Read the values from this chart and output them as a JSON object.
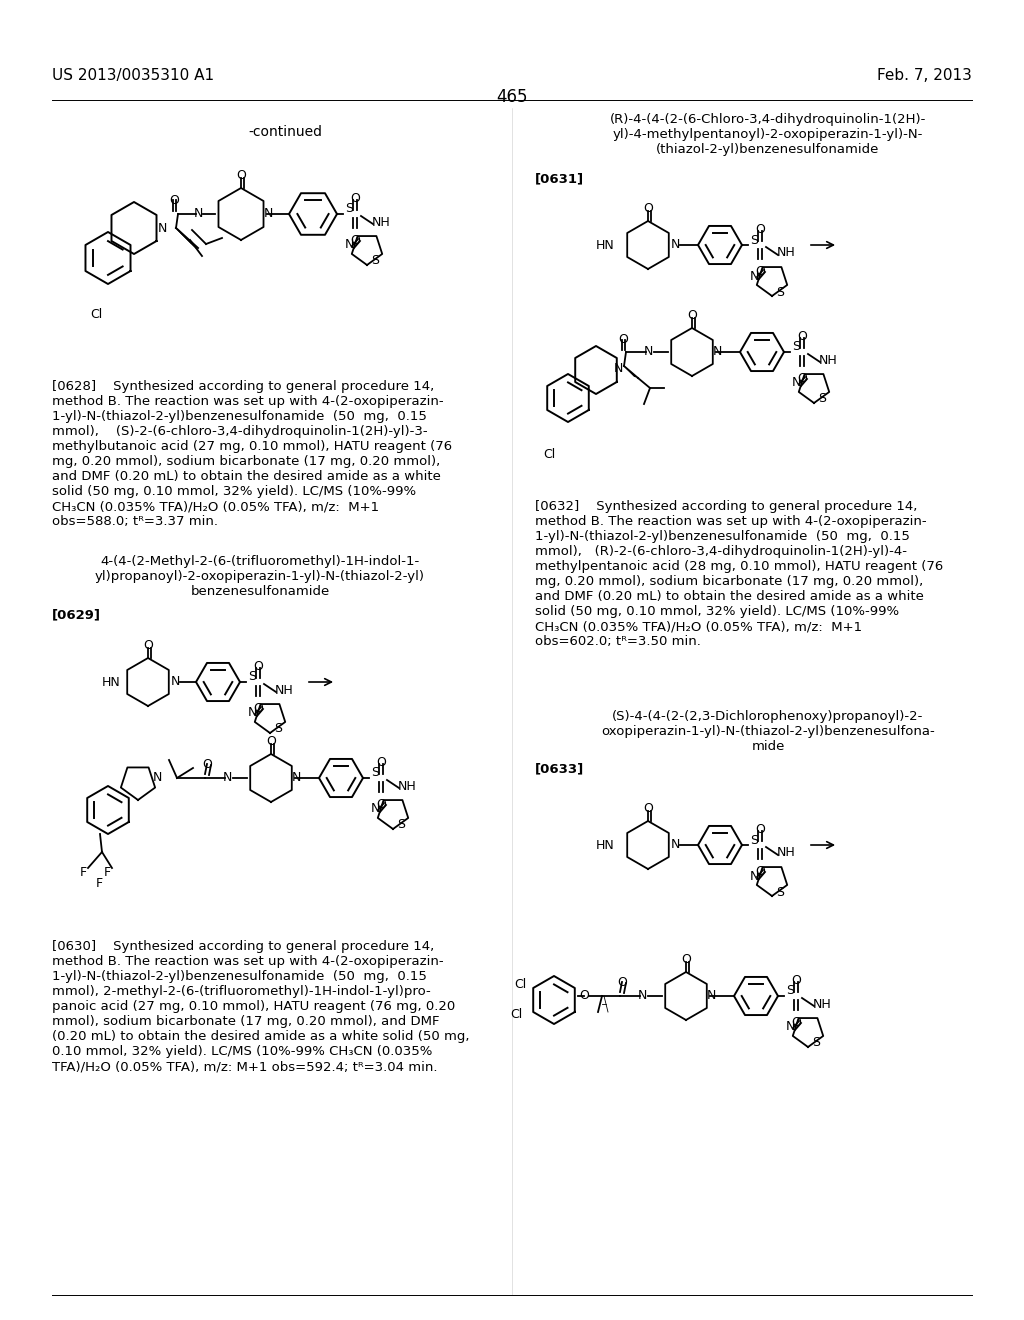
{
  "bg": "#ffffff",
  "header_left": "US 2013/0035310 A1",
  "header_right": "Feb. 7, 2013",
  "page_number": "465",
  "continued": "-continued",
  "title629": "4-(4-(2-Methyl-2-(6-(trifluoromethyl)-1H-indol-1-\nyl)propanoyl)-2-oxopiperazin-1-yl)-N-(thiazol-2-yl)\nbenzenesulfonamide",
  "title631": "(R)-4-(4-(2-(6-Chloro-3,4-dihydroquinolin-1(2H)-\nyl)-4-methylpentanoyl)-2-oxopiperazin-1-yl)-N-\n(thiazol-2-yl)benzenesulfonamide",
  "title633": "(S)-4-(4-(2-(2,3-Dichlorophenoxy)propanoyl)-2-\noxopiperazin-1-yl)-N-(thiazol-2-yl)benzenesulfona-\nmide",
  "text628": "[0628]    Synthesized according to general procedure 14,\nmethod B. The reaction was set up with 4-(2-oxopiperazin-\n1-yl)-N-(thiazol-2-yl)benzenesulfonamide  (50  mg,  0.15\nmmol),    (S)-2-(6-chloro-3,4-dihydroquinolin-1(2H)-yl)-3-\nmethylbutanoic acid (27 mg, 0.10 mmol), HATU reagent (76\nmg, 0.20 mmol), sodium bicarbonate (17 mg, 0.20 mmol),\nand DMF (0.20 mL) to obtain the desired amide as a white\nsolid (50 mg, 0.10 mmol, 32% yield). LC/MS (10%-99%\nCH₃CN (0.035% TFA)/H₂O (0.05% TFA), m/z:  M+1\nobs=588.0; tᴿ=3.37 min.",
  "text630": "[0630]    Synthesized according to general procedure 14,\nmethod B. The reaction was set up with 4-(2-oxopiperazin-\n1-yl)-N-(thiazol-2-yl)benzenesulfonamide  (50  mg,  0.15\nmmol), 2-methyl-2-(6-(trifluoromethyl)-1H-indol-1-yl)pro-\npanoic acid (27 mg, 0.10 mmol), HATU reagent (76 mg, 0.20\nmmol), sodium bicarbonate (17 mg, 0.20 mmol), and DMF\n(0.20 mL) to obtain the desired amide as a white solid (50 mg,\n0.10 mmol, 32% yield). LC/MS (10%-99% CH₃CN (0.035%\nTFA)/H₂O (0.05% TFA), m/z: M+1 obs=592.4; tᴿ=3.04 min.",
  "text632": "[0632]    Synthesized according to general procedure 14,\nmethod B. The reaction was set up with 4-(2-oxopiperazin-\n1-yl)-N-(thiazol-2-yl)benzenesulfonamide  (50  mg,  0.15\nmmol),   (R)-2-(6-chloro-3,4-dihydroquinolin-1(2H)-yl)-4-\nmethylpentanoic acid (28 mg, 0.10 mmol), HATU reagent (76\nmg, 0.20 mmol), sodium bicarbonate (17 mg, 0.20 mmol),\nand DMF (0.20 mL) to obtain the desired amide as a white\nsolid (50 mg, 0.10 mmol, 32% yield). LC/MS (10%-99%\nCH₃CN (0.035% TFA)/H₂O (0.05% TFA), m/z:  M+1\nobs=602.0; tᴿ=3.50 min."
}
